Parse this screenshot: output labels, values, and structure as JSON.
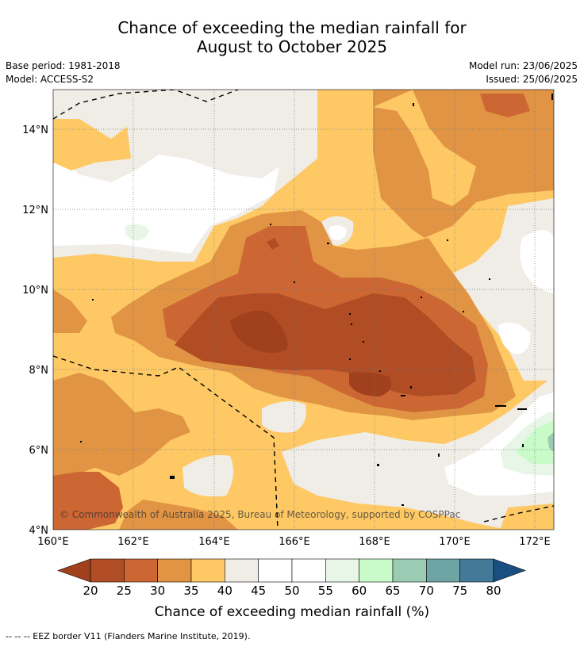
{
  "title_line1": "Chance of exceeding the median rainfall for",
  "title_line2": "August to October 2025",
  "base_period": "Base period: 1981-2018",
  "model": "Model: ACCESS-S2",
  "model_run": "Model run: 23/06/2025",
  "issued": "Issued: 25/06/2025",
  "copyright": "© Commonwealth of Australia 2025, Bureau of Meteorology, supported by COSPPac",
  "lat_ticks": [
    "14°N",
    "12°N",
    "10°N",
    "8°N",
    "6°N",
    "4°N"
  ],
  "lon_ticks": [
    "160°E",
    "162°E",
    "164°E",
    "166°E",
    "168°E",
    "170°E",
    "172°E"
  ],
  "colorbar": {
    "ticks": [
      "20",
      "25",
      "30",
      "35",
      "40",
      "45",
      "50",
      "55",
      "60",
      "65",
      "70",
      "75",
      "80"
    ],
    "colors": [
      "#a0401c",
      "#b04d25",
      "#cc6633",
      "#e09444",
      "#fec965",
      "#f0ece6",
      "#ffffff",
      "#ffffff",
      "#e8f6e8",
      "#c8fbc8",
      "#9ccbb4",
      "#6ea4a4",
      "#437a98",
      "#1a4f82"
    ],
    "label": "Chance of exceeding median rainfall (%)"
  },
  "footer": "--  --  -- EEZ border V11 (Flanders Marine Institute, 2019)."
}
